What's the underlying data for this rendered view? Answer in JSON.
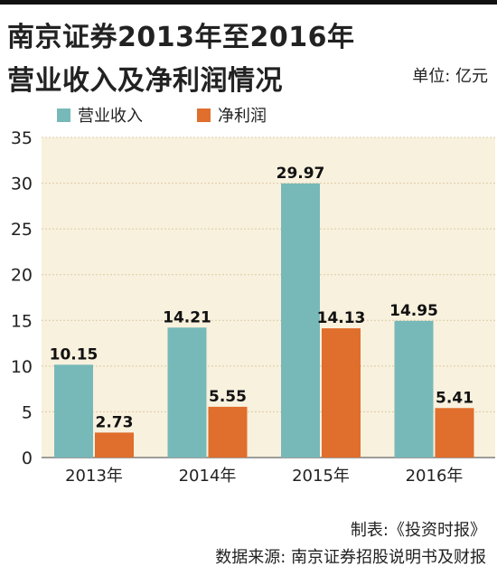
{
  "header": {
    "title_line1": "南京证券2013年至2016年",
    "title_line2": "营业收入及净利润情况",
    "unit": "单位: 亿元"
  },
  "colors": {
    "revenue": "#77b9b8",
    "profit": "#e06e2c",
    "plot_bg": "#f8f1de",
    "grid": "#dccba4"
  },
  "chart_data": {
    "type": "bar",
    "title": "南京证券2013年至2016年营业收入及净利润情况",
    "categories": [
      "2013年",
      "2014年",
      "2015年",
      "2016年"
    ],
    "series": [
      {
        "name": "营业收入",
        "values": [
          10.15,
          14.21,
          29.97,
          14.95
        ],
        "labels": [
          "10.15",
          "14.21",
          "29.97",
          "14.95"
        ]
      },
      {
        "name": "净利润",
        "values": [
          2.73,
          5.55,
          14.13,
          5.41
        ],
        "labels": [
          "2.73",
          "5.55",
          "14.13",
          "5.41"
        ]
      }
    ],
    "ylim": [
      0,
      35
    ],
    "yticks": [
      "0",
      "5",
      "10",
      "15",
      "20",
      "25",
      "30",
      "35"
    ],
    "grid": true,
    "legend": "top-left"
  },
  "footer": {
    "credit": "制表:《投资时报》",
    "source": "数据来源: 南京证券招股说明书及财报"
  }
}
